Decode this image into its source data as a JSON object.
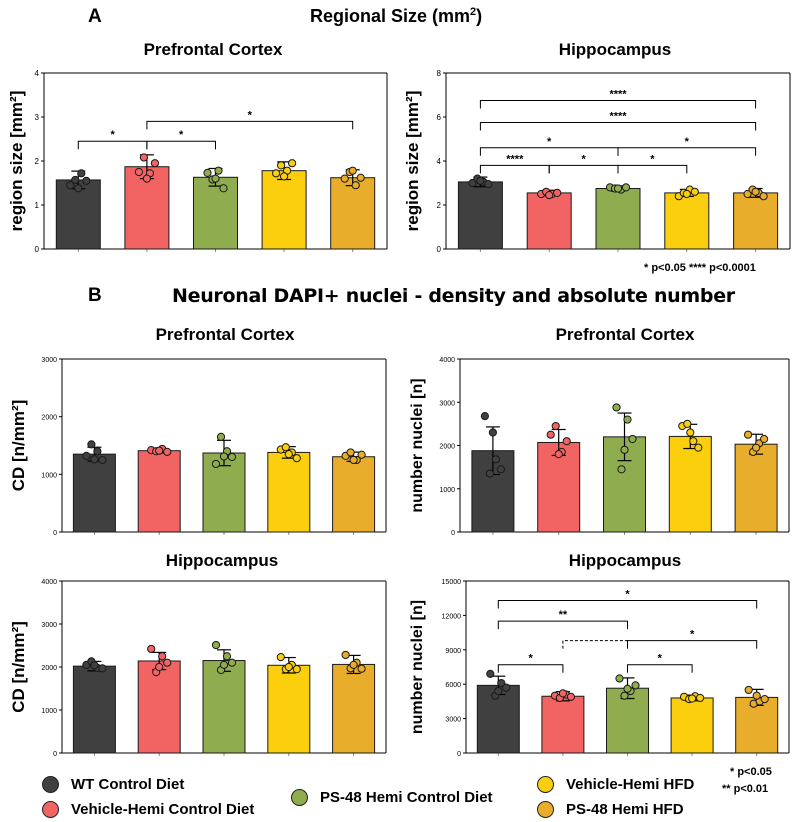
{
  "panel_a": {
    "letter": "A",
    "title": "Regional Size (mm",
    "title_sup": "2",
    "title_end": ")",
    "significance_legend": "*  p<0.05   ****  p<0.0001"
  },
  "panel_b": {
    "letter": "B",
    "title": "Neuronal DAPI+ nuclei - density and absolute number"
  },
  "colors": {
    "wt_control": "#404040",
    "vehicle_hemi_control": "#f26363",
    "ps48_hemi_control": "#8fac4e",
    "vehicle_hemi_hfd": "#fccf0e",
    "ps48_hemi_hfd": "#e8ad2a"
  },
  "legend": {
    "items": [
      {
        "label": "WT Control Diet",
        "color": "#404040"
      },
      {
        "label": "Vehicle-Hemi Control Diet",
        "color": "#f26363"
      },
      {
        "label": "PS-48 Hemi Control Diet",
        "color": "#8fac4e"
      },
      {
        "label": "Vehicle-Hemi HFD",
        "color": "#fccf0e"
      },
      {
        "label": "PS-48 Hemi HFD",
        "color": "#e8ad2a"
      }
    ],
    "sig_1": "*   p<0.05",
    "sig_2": "**   p<0.01"
  },
  "chart_data": [
    {
      "id": "a_pfc",
      "type": "bar",
      "title": "Prefrontal Cortex",
      "ylabel": "region size [mm²]",
      "ylim": [
        0,
        4
      ],
      "yticks": [
        0,
        1,
        2,
        3,
        4
      ],
      "tick_labels": [
        "0",
        "1",
        "2",
        "3",
        "4"
      ],
      "categories": [
        "WT Control Diet",
        "Vehicle-Hemi Control Diet",
        "PS-48 Hemi Control Diet",
        "Vehicle-Hemi HFD",
        "PS-48 Hemi HFD"
      ],
      "values": [
        1.57,
        1.87,
        1.63,
        1.78,
        1.62
      ],
      "errors": [
        0.2,
        0.27,
        0.2,
        0.2,
        0.18
      ],
      "points": [
        [
          1.45,
          1.57,
          1.72,
          1.55,
          1.38
        ],
        [
          1.75,
          2.08,
          1.72,
          1.95,
          1.6
        ],
        [
          1.73,
          1.58,
          1.78,
          1.38,
          1.6
        ],
        [
          1.72,
          1.9,
          1.78,
          1.95,
          1.65
        ],
        [
          1.6,
          1.75,
          1.45,
          1.62,
          1.78
        ]
      ],
      "significance": [
        {
          "from": 0,
          "to": 1,
          "label": "*",
          "y": 2.45
        },
        {
          "from": 1,
          "to": 2,
          "label": "*",
          "y": 2.45
        },
        {
          "from": 1,
          "to": 4,
          "label": "*",
          "y": 2.9
        }
      ]
    },
    {
      "id": "a_hip",
      "type": "bar",
      "title": "Hippocampus",
      "ylabel": "region size [mm²]",
      "ylim": [
        0,
        8
      ],
      "yticks": [
        0,
        2,
        4,
        6,
        8
      ],
      "tick_labels": [
        "0",
        "2",
        "4",
        "6",
        "8"
      ],
      "categories": [
        "WT Control Diet",
        "Vehicle-Hemi Control Diet",
        "PS-48 Hemi Control Diet",
        "Vehicle-Hemi HFD",
        "PS-48 Hemi HFD"
      ],
      "values": [
        3.05,
        2.55,
        2.75,
        2.55,
        2.55
      ],
      "errors": [
        0.22,
        0.12,
        0.12,
        0.16,
        0.2
      ],
      "points": [
        [
          3.0,
          3.2,
          3.05,
          2.95,
          3.1
        ],
        [
          2.5,
          2.6,
          2.5,
          2.55,
          2.45
        ],
        [
          2.8,
          2.75,
          2.7,
          2.8,
          2.75
        ],
        [
          2.4,
          2.55,
          2.7,
          2.6,
          2.5
        ],
        [
          2.5,
          2.7,
          2.55,
          2.4,
          2.6
        ]
      ],
      "significance": [
        {
          "from": 0,
          "to": 1,
          "label": "****",
          "y": 3.8
        },
        {
          "from": 1,
          "to": 2,
          "label": "*",
          "y": 3.8
        },
        {
          "from": 2,
          "to": 3,
          "label": "*",
          "y": 3.8
        },
        {
          "from": 0,
          "to": 2,
          "label": "*",
          "y": 4.6
        },
        {
          "from": 2,
          "to": 4,
          "label": "*",
          "y": 4.6
        },
        {
          "from": 0,
          "to": 4,
          "label": "****",
          "y": 5.75
        },
        {
          "from": 0,
          "to": 4,
          "label": "****",
          "y": 6.75
        }
      ]
    },
    {
      "id": "b_pfc_cd",
      "type": "bar",
      "title": "Prefrontal Cortex",
      "ylabel": "CD [n/mm²]",
      "ylim": [
        0,
        3000
      ],
      "yticks": [
        0,
        1000,
        2000,
        3000
      ],
      "tick_labels": [
        "0",
        "1000",
        "2000",
        "3000"
      ],
      "categories": [
        "WT Control Diet",
        "Vehicle-Hemi Control Diet",
        "PS-48 Hemi Control Diet",
        "Vehicle-Hemi HFD",
        "PS-48 Hemi HFD"
      ],
      "values": [
        1350,
        1410,
        1370,
        1380,
        1305
      ],
      "errors": [
        120,
        40,
        220,
        100,
        80
      ],
      "points": [
        [
          1320,
          1520,
          1400,
          1250,
          1260
        ],
        [
          1420,
          1400,
          1440,
          1390,
          1410
        ],
        [
          1180,
          1650,
          1400,
          1300,
          1310
        ],
        [
          1430,
          1470,
          1380,
          1280,
          1350
        ],
        [
          1320,
          1380,
          1250,
          1340,
          1250
        ]
      ],
      "significance": []
    },
    {
      "id": "b_pfc_n",
      "type": "bar",
      "title": "Prefrontal Cortex",
      "ylabel": "number nuclei [n]",
      "ylim": [
        0,
        4000
      ],
      "yticks": [
        0,
        1000,
        2000,
        3000,
        4000
      ],
      "tick_labels": [
        "0",
        "1000",
        "2000",
        "3000",
        "4000"
      ],
      "categories": [
        "WT Control Diet",
        "Vehicle-Hemi Control Diet",
        "PS-48 Hemi Control Diet",
        "Vehicle-Hemi HFD",
        "PS-48 Hemi HFD"
      ],
      "values": [
        1880,
        2070,
        2200,
        2210,
        2030
      ],
      "errors": [
        550,
        300,
        550,
        280,
        230
      ],
      "points": [
        [
          2680,
          1350,
          1680,
          1450,
          2300
        ],
        [
          2250,
          2450,
          1850,
          2100,
          1800
        ],
        [
          2880,
          1450,
          2600,
          2150,
          1900
        ],
        [
          2450,
          2500,
          2100,
          1950,
          2300
        ],
        [
          2250,
          1850,
          2050,
          2150,
          1950
        ]
      ],
      "significance": []
    },
    {
      "id": "b_hip_cd",
      "type": "bar",
      "title": "Hippocampus",
      "ylabel": "CD [n/mm²]",
      "ylim": [
        0,
        4000
      ],
      "yticks": [
        0,
        1000,
        2000,
        3000,
        4000
      ],
      "tick_labels": [
        "0",
        "1000",
        "2000",
        "3000",
        "4000"
      ],
      "categories": [
        "WT Control Diet",
        "Vehicle-Hemi Control Diet",
        "PS-48 Hemi Control Diet",
        "Vehicle-Hemi HFD",
        "PS-48 Hemi HFD"
      ],
      "values": [
        2020,
        2140,
        2150,
        2040,
        2060
      ],
      "errors": [
        110,
        200,
        250,
        180,
        210
      ],
      "points": [
        [
          2050,
          2130,
          1980,
          1970,
          2040
        ],
        [
          2420,
          1880,
          2250,
          2100,
          2000
        ],
        [
          2510,
          1930,
          2250,
          2100,
          2050
        ],
        [
          2230,
          1950,
          2050,
          1950,
          2000
        ],
        [
          2280,
          1970,
          2100,
          1960,
          2050
        ]
      ],
      "significance": []
    },
    {
      "id": "b_hip_n",
      "type": "bar",
      "title": "Hippocampus",
      "ylabel": "number nuclei [n]",
      "ylim": [
        0,
        15000
      ],
      "yticks": [
        0,
        3000,
        6000,
        9000,
        12000,
        15000
      ],
      "tick_labels": [
        "0",
        "3000",
        "6000",
        "9000",
        "12000",
        "15000"
      ],
      "categories": [
        "WT Control Diet",
        "Vehicle-Hemi Control Diet",
        "PS-48 Hemi Control Diet",
        "Vehicle-Hemi HFD",
        "PS-48 Hemi HFD"
      ],
      "values": [
        5900,
        4950,
        5650,
        4800,
        4850
      ],
      "errors": [
        800,
        400,
        900,
        250,
        700
      ],
      "points": [
        [
          6900,
          5000,
          6100,
          5700,
          5400
        ],
        [
          5000,
          4800,
          5100,
          4900,
          5200
        ],
        [
          6500,
          5000,
          5400,
          5900,
          5600
        ],
        [
          4900,
          4700,
          4950,
          4800,
          4750
        ],
        [
          5500,
          4300,
          4500,
          4700,
          5000
        ]
      ],
      "significance": [
        {
          "from": 0,
          "to": 1,
          "label": "*",
          "y": 7700
        },
        {
          "from": 2,
          "to": 3,
          "label": "*",
          "y": 7700
        },
        {
          "from": 1,
          "to": 2,
          "label": "",
          "y": 9800,
          "dashed": true
        },
        {
          "from": 2,
          "to": 4,
          "label": "*",
          "y": 9800
        },
        {
          "from": 0,
          "to": 2,
          "label": "**",
          "y": 11500
        },
        {
          "from": 0,
          "to": 4,
          "label": "*",
          "y": 13300
        }
      ]
    }
  ]
}
